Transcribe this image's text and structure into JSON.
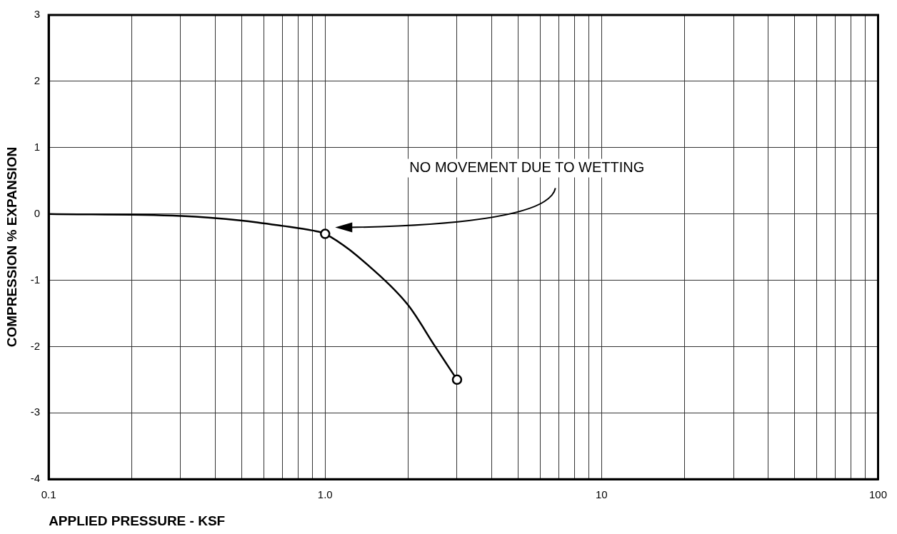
{
  "chart_data": {
    "type": "line",
    "xlabel": "APPLIED PRESSURE - KSF",
    "ylabel": "COMPRESSION % EXPANSION",
    "log": "x",
    "grid": true,
    "legend": false,
    "xlim": [
      0.1,
      100
    ],
    "ylim": [
      -4,
      3
    ],
    "xticks": [
      0.1,
      {
        "value": 0.2,
        "label": null
      },
      {
        "value": 0.3,
        "label": null
      },
      {
        "value": 0.4,
        "label": null
      },
      {
        "value": 0.5,
        "label": null
      },
      {
        "value": 0.6,
        "label": null
      },
      {
        "value": 0.7,
        "label": null
      },
      {
        "value": 0.8,
        "label": null
      },
      {
        "value": 0.9,
        "label": null
      },
      {
        "value": 1,
        "label": "1.0"
      },
      {
        "value": 2,
        "label": null
      },
      {
        "value": 3,
        "label": null
      },
      {
        "value": 4,
        "label": null
      },
      {
        "value": 5,
        "label": null
      },
      {
        "value": 6,
        "label": null
      },
      {
        "value": 7,
        "label": null
      },
      {
        "value": 8,
        "label": null
      },
      {
        "value": 9,
        "label": null
      },
      10,
      {
        "value": 20,
        "label": null
      },
      {
        "value": 30,
        "label": null
      },
      {
        "value": 40,
        "label": null
      },
      {
        "value": 50,
        "label": null
      },
      {
        "value": 60,
        "label": null
      },
      {
        "value": 70,
        "label": null
      },
      {
        "value": 80,
        "label": null
      },
      {
        "value": 90,
        "label": null
      },
      100
    ],
    "yticks": [
      -4,
      -3,
      -2,
      -1,
      0,
      1,
      2,
      3
    ],
    "series": [
      {
        "color": "#000000",
        "marker": "none",
        "line_style": "solid",
        "x": [
          0.1,
          0.3,
          0.5,
          0.7,
          0.9,
          1,
          1.5,
          2,
          2.5,
          3
        ],
        "values": [
          0,
          -0.03,
          -0.1,
          -0.18,
          -0.25,
          -0.3,
          -0.85,
          -1.38,
          -2.0,
          -2.5
        ]
      },
      {
        "type": "scatter",
        "color": "#000000",
        "marker": "circle",
        "x": [
          1,
          3
        ],
        "values": [
          -0.3,
          -2.5
        ]
      }
    ],
    "annotations": [
      "NO MOVEMENT DUE TO WETTING"
    ]
  }
}
